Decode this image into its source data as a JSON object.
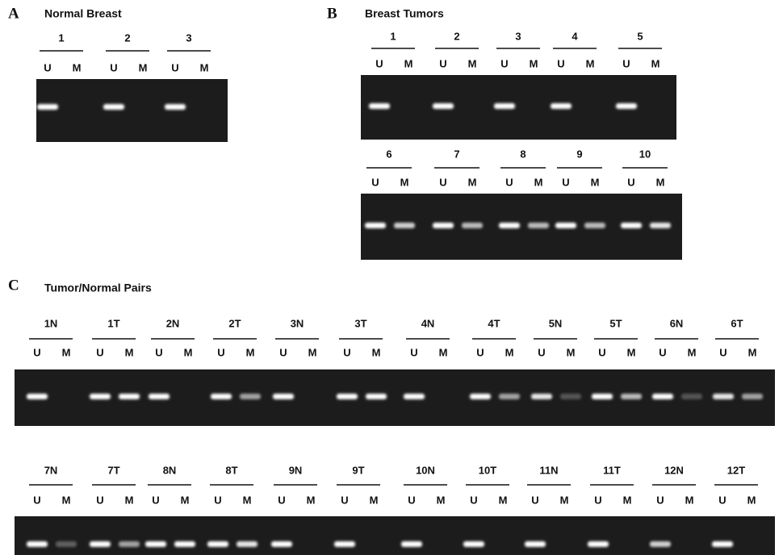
{
  "lane_labels": [
    "U",
    "M"
  ],
  "panels": [
    {
      "letter": "A",
      "title": "Normal Breast",
      "rows": [
        [
          "1",
          "2",
          "3"
        ]
      ]
    },
    {
      "letter": "B",
      "title": "Breast Tumors",
      "rows": [
        [
          "1",
          "2",
          "3",
          "4",
          "5"
        ],
        [
          "6",
          "7",
          "8",
          "9",
          "10"
        ]
      ]
    },
    {
      "letter": "C",
      "title": "Tumor/Normal Pairs",
      "rows": [
        [
          "1N",
          "1T",
          "2N",
          "2T",
          "3N",
          "3T",
          "4N",
          "4T",
          "5N",
          "5T",
          "6N",
          "6T"
        ],
        [
          "7N",
          "7T",
          "8N",
          "8T",
          "9N",
          "9T",
          "10N",
          "10T",
          "11N",
          "11T",
          "12N",
          "12T"
        ]
      ]
    }
  ]
}
